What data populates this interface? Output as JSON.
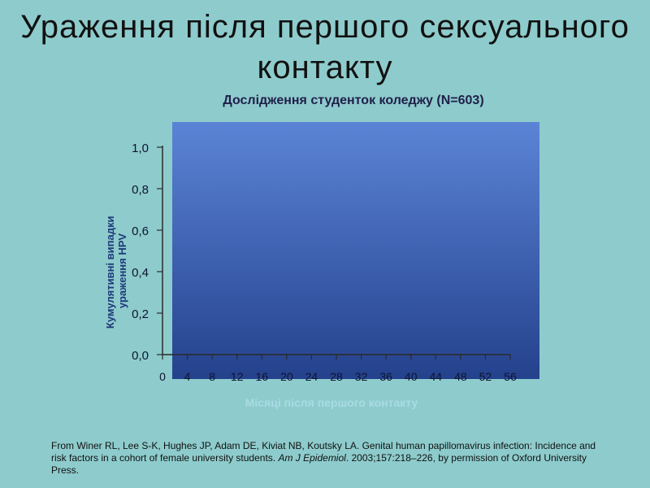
{
  "slide": {
    "title_line1": "Ураження після першого сексуального",
    "title_line2": "контакту"
  },
  "colors": {
    "background": "#8ecbcc",
    "plot_top": "#5b84d6",
    "plot_bottom": "#24418c",
    "axis": "#2a2a2a",
    "ylabel": "#1f3a7a",
    "xlabel": "#a9dbe6"
  },
  "chart_data": {
    "type": "line",
    "title": "Дослідження студенток коледжу (N=603)",
    "xlabel": "Місяці після першого контакту",
    "ylabel_line1": "Кумулятивні випадки",
    "ylabel_line2": "ураження HPV",
    "x_ticks": [
      0,
      4,
      8,
      12,
      16,
      20,
      24,
      28,
      32,
      36,
      40,
      44,
      48,
      52,
      56
    ],
    "y_ticks": [
      "0,0",
      "0,2",
      "0,4",
      "0,6",
      "0,8",
      "1,0"
    ],
    "xlim": [
      0,
      56
    ],
    "ylim": [
      0,
      1.0
    ],
    "grid": false,
    "series": []
  },
  "citation": {
    "part1": "From Winer RL, Lee S-K, Hughes JP, Adam DE, Kiviat NB, Koutsky LA. Genital human papillomavirus infection: Incidence and risk factors in a cohort of female university students. ",
    "journal": "Am J Epidemiol",
    "part2": ". 2003;157:218–226, by permission of Oxford University Press."
  }
}
